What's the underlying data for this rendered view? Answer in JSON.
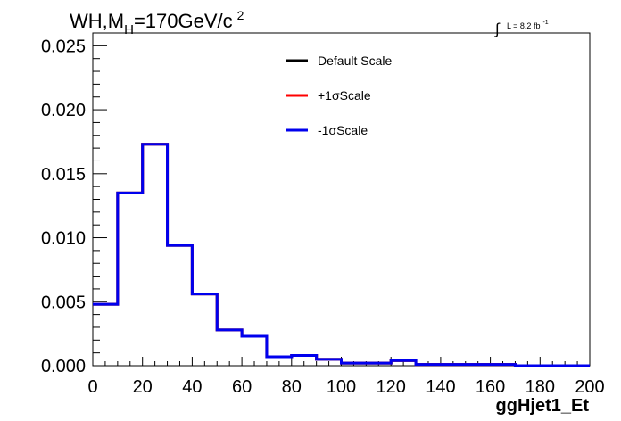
{
  "chart_data": {
    "type": "line",
    "title_parts": {
      "main": "WH,M",
      "sub": "H",
      "rest": "=170GeV/c",
      "sup": "2"
    },
    "lumi": {
      "integral": "∫",
      "text": "L = 8.2 fb",
      "sup": "-1"
    },
    "xlabel": "ggHjet1_Et",
    "ylabel": "",
    "xlim": [
      0,
      200
    ],
    "ylim": [
      0,
      0.026
    ],
    "x_ticks": [
      "0",
      "20",
      "40",
      "60",
      "80",
      "100",
      "120",
      "140",
      "160",
      "180",
      "200"
    ],
    "y_ticks": [
      "0.000",
      "0.005",
      "0.010",
      "0.015",
      "0.020",
      "0.025"
    ],
    "bin_edges": [
      0,
      10,
      20,
      30,
      40,
      50,
      60,
      70,
      80,
      90,
      100,
      110,
      120,
      130,
      140,
      150,
      160,
      170,
      180,
      190,
      200
    ],
    "series": [
      {
        "name": "Default Scale",
        "color": "#000000",
        "values": [
          0.0048,
          0.0135,
          0.0173,
          0.0094,
          0.0056,
          0.0028,
          0.0023,
          0.0007,
          0.0008,
          0.0005,
          0.0002,
          0.0002,
          0.0004,
          0.0001,
          0.0001,
          0.0001,
          0.0001,
          0.0,
          0.0,
          0.0
        ]
      },
      {
        "name": "+1σScale",
        "color": "#ff0000",
        "values": [
          0.0048,
          0.0135,
          0.0173,
          0.0094,
          0.0056,
          0.0028,
          0.0023,
          0.0007,
          0.0008,
          0.0005,
          0.0002,
          0.0002,
          0.0004,
          0.0001,
          0.0001,
          0.0001,
          0.0001,
          0.0,
          0.0,
          0.0
        ]
      },
      {
        "name": "-1σScale",
        "color": "#0000ee",
        "values": [
          0.0048,
          0.0135,
          0.0173,
          0.0094,
          0.0056,
          0.0028,
          0.0023,
          0.0007,
          0.0008,
          0.0005,
          0.0002,
          0.0002,
          0.0004,
          0.0001,
          0.0001,
          0.0001,
          0.0001,
          0.0,
          0.0,
          0.0
        ]
      }
    ],
    "grid": false,
    "legend_position": "top-center"
  }
}
